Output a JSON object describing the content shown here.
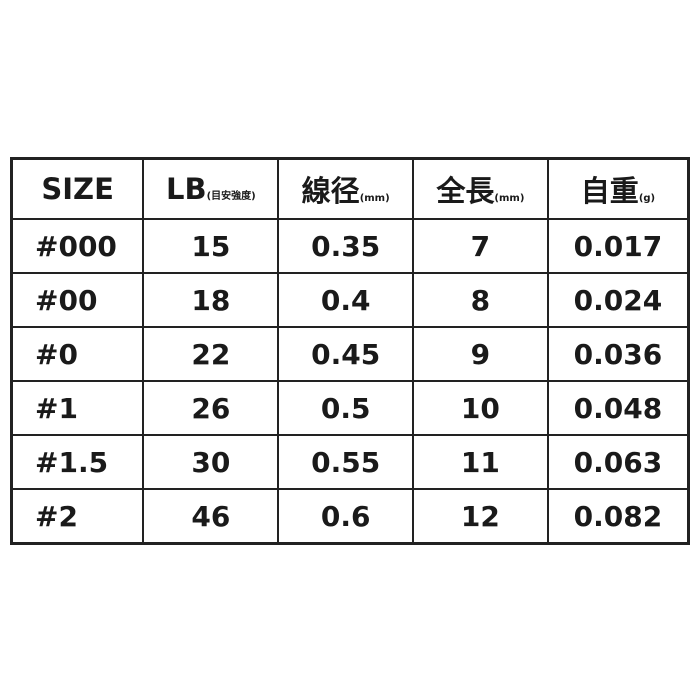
{
  "table": {
    "headers": [
      {
        "label": "SIZE",
        "unit": ""
      },
      {
        "label": "LB",
        "unit": "(目安強度)"
      },
      {
        "label": "線径",
        "unit": "(mm)"
      },
      {
        "label": "全長",
        "unit": "(mm)"
      },
      {
        "label": "自重",
        "unit": "(g)"
      }
    ],
    "rows": [
      [
        "#000",
        "15",
        "0.35",
        "7",
        "0.017"
      ],
      [
        "#00",
        "18",
        "0.4",
        "8",
        "0.024"
      ],
      [
        "#0",
        "22",
        "0.45",
        "9",
        "0.036"
      ],
      [
        "#1",
        "26",
        "0.5",
        "10",
        "0.048"
      ],
      [
        "#1.5",
        "30",
        "0.55",
        "11",
        "0.063"
      ],
      [
        "#2",
        "46",
        "0.6",
        "12",
        "0.082"
      ]
    ]
  }
}
